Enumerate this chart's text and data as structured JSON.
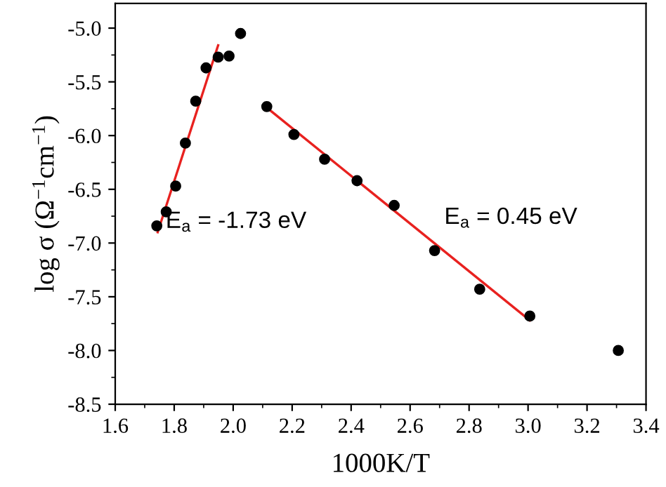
{
  "chart_data": {
    "type": "scatter",
    "xlabel": "1000K/T",
    "ylabel": "log σ (Ω$^{−1}$cm$^{−1}$)",
    "series": [
      {
        "color": "#000000",
        "marker": "circle",
        "x": [
          1.741,
          1.773,
          1.805,
          1.838,
          1.873,
          1.908,
          1.949,
          1.986,
          2.025,
          2.114,
          2.206,
          2.31,
          2.42,
          2.546,
          2.683,
          2.836,
          3.006,
          3.306
        ],
        "values": [
          -6.84,
          -6.71,
          -6.47,
          -6.07,
          -5.68,
          -5.37,
          -5.27,
          -5.26,
          -5.05,
          -5.73,
          -5.99,
          -6.22,
          -6.42,
          -6.65,
          -7.07,
          -7.43,
          -7.68,
          -8.0
        ]
      },
      {
        "type": "line",
        "color": "#e8211f",
        "line_style": "solid",
        "x": [
          1.744,
          1.949
        ],
        "values": [
          -6.9,
          -5.16
        ]
      },
      {
        "type": "line",
        "color": "#e8211f",
        "line_style": "solid",
        "x": [
          2.114,
          3.006
        ],
        "values": [
          -5.74,
          -7.72
        ]
      }
    ],
    "annotations": [
      "E$_{a}$ = -1.73 eV",
      "E$_{a}$ = 0.45 eV"
    ],
    "xlim": [
      1.6,
      3.4
    ],
    "xticks": [
      1.6,
      1.8,
      {
        "value": 2,
        "label": "2.0"
      },
      2.2,
      2.4,
      2.6,
      2.8,
      {
        "value": 3,
        "label": "3.0"
      },
      3.2,
      3.4
    ],
    "ylim": [
      -8.5,
      -4.77
    ],
    "yticks": [
      -8.5,
      {
        "value": -8,
        "label": "-8.0"
      },
      -7.5,
      {
        "value": -7,
        "label": "-7.0"
      },
      -6.5,
      {
        "value": -6,
        "label": "-6.0"
      },
      -5.5,
      {
        "value": -5,
        "label": "-5.0"
      }
    ],
    "grid": false,
    "legend": false
  }
}
